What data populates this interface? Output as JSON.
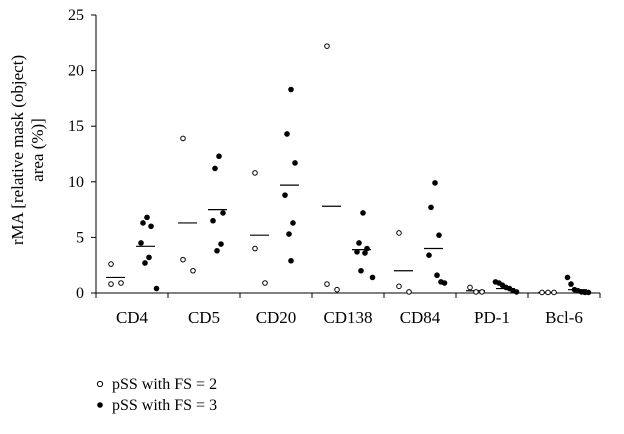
{
  "chart_data": {
    "type": "scatter",
    "ylabel_lines": [
      "rMA [relative mask (object)",
      "area (%)]"
    ],
    "ylim": [
      0,
      25
    ],
    "yticks": [
      0,
      5,
      10,
      15,
      20,
      25
    ],
    "grid": false,
    "legend_position": "bottom-left",
    "categories": [
      "CD4",
      "CD5",
      "CD20",
      "CD138",
      "CD84",
      "PD-1",
      "Bcl-6"
    ],
    "series": [
      {
        "name": "pSS with FS = 2",
        "marker": "open-circle",
        "color": "#000000",
        "points": [
          [
            2.6,
            0.8,
            0.9
          ],
          [
            13.9,
            3.0,
            2.0
          ],
          [
            10.8,
            4.0,
            0.9
          ],
          [
            22.2,
            0.8,
            0.3
          ],
          [
            5.4,
            0.6,
            0.1
          ],
          [
            0.5,
            0.1,
            0.1
          ],
          [
            0.05,
            0.05,
            0.05
          ]
        ],
        "means": [
          1.4,
          6.3,
          5.2,
          7.8,
          2.0,
          0.2,
          0.05
        ]
      },
      {
        "name": "pSS with FS = 3",
        "marker": "filled-circle",
        "color": "#000000",
        "points": [
          [
            6.8,
            6.3,
            6.0,
            4.5,
            3.2,
            2.7,
            0.4
          ],
          [
            12.3,
            11.2,
            7.2,
            6.5,
            4.4,
            3.8
          ],
          [
            18.3,
            14.3,
            11.7,
            8.8,
            6.3,
            5.3,
            2.9
          ],
          [
            7.2,
            4.5,
            4.0,
            3.7,
            3.6,
            2.0,
            1.4
          ],
          [
            9.9,
            7.7,
            5.2,
            3.4,
            1.6,
            1.0,
            0.9
          ],
          [
            1.0,
            0.9,
            0.7,
            0.5,
            0.4,
            0.2,
            0.1
          ],
          [
            1.4,
            0.8,
            0.3,
            0.2,
            0.1,
            0.05,
            0.05
          ]
        ],
        "means": [
          4.2,
          7.5,
          9.7,
          3.9,
          4.0,
          0.4,
          0.3
        ]
      }
    ]
  },
  "legend": [
    {
      "label": "pSS with FS = 2",
      "marker": "open-circle"
    },
    {
      "label": "pSS with FS = 3",
      "marker": "filled-circle"
    }
  ]
}
